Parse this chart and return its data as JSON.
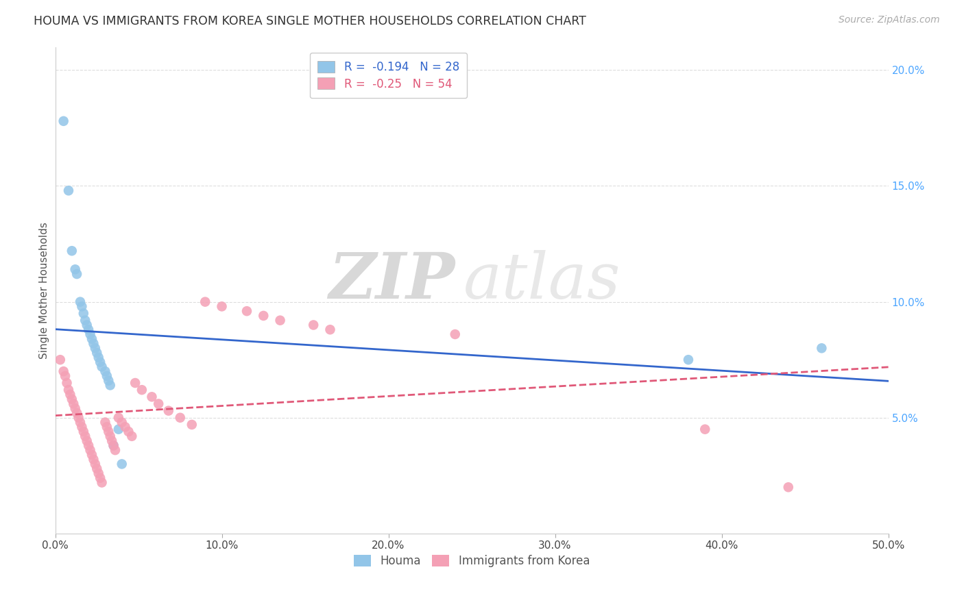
{
  "title": "HOUMA VS IMMIGRANTS FROM KOREA SINGLE MOTHER HOUSEHOLDS CORRELATION CHART",
  "source": "Source: ZipAtlas.com",
  "ylabel": "Single Mother Households",
  "xmin": 0.0,
  "xmax": 0.5,
  "ymin": 0.0,
  "ymax": 0.21,
  "houma_color": "#92C5E8",
  "korea_color": "#F4A0B5",
  "houma_line_color": "#3366CC",
  "korea_line_color": "#E05878",
  "houma_R": -0.194,
  "houma_N": 28,
  "korea_R": -0.25,
  "korea_N": 54,
  "legend_houma": "Houma",
  "legend_korea": "Immigrants from Korea",
  "watermark_zip": "ZIP",
  "watermark_atlas": "atlas",
  "background_color": "#ffffff",
  "grid_color": "#dddddd",
  "houma_x": [
    0.005,
    0.008,
    0.01,
    0.012,
    0.013,
    0.015,
    0.016,
    0.017,
    0.018,
    0.019,
    0.02,
    0.021,
    0.022,
    0.023,
    0.024,
    0.025,
    0.026,
    0.027,
    0.028,
    0.03,
    0.031,
    0.032,
    0.033,
    0.035,
    0.038,
    0.04,
    0.38,
    0.46
  ],
  "houma_y": [
    0.178,
    0.148,
    0.122,
    0.114,
    0.112,
    0.1,
    0.098,
    0.095,
    0.092,
    0.09,
    0.088,
    0.086,
    0.084,
    0.082,
    0.08,
    0.078,
    0.076,
    0.074,
    0.072,
    0.07,
    0.068,
    0.066,
    0.064,
    0.038,
    0.045,
    0.03,
    0.075,
    0.08
  ],
  "korea_x": [
    0.003,
    0.005,
    0.006,
    0.007,
    0.008,
    0.009,
    0.01,
    0.011,
    0.012,
    0.013,
    0.014,
    0.015,
    0.016,
    0.017,
    0.018,
    0.019,
    0.02,
    0.021,
    0.022,
    0.023,
    0.024,
    0.025,
    0.026,
    0.027,
    0.028,
    0.03,
    0.031,
    0.032,
    0.033,
    0.034,
    0.035,
    0.036,
    0.038,
    0.04,
    0.042,
    0.044,
    0.046,
    0.048,
    0.052,
    0.058,
    0.062,
    0.068,
    0.075,
    0.082,
    0.09,
    0.1,
    0.115,
    0.125,
    0.135,
    0.155,
    0.165,
    0.24,
    0.39,
    0.44
  ],
  "korea_y": [
    0.075,
    0.07,
    0.068,
    0.065,
    0.062,
    0.06,
    0.058,
    0.056,
    0.054,
    0.052,
    0.05,
    0.048,
    0.046,
    0.044,
    0.042,
    0.04,
    0.038,
    0.036,
    0.034,
    0.032,
    0.03,
    0.028,
    0.026,
    0.024,
    0.022,
    0.048,
    0.046,
    0.044,
    0.042,
    0.04,
    0.038,
    0.036,
    0.05,
    0.048,
    0.046,
    0.044,
    0.042,
    0.065,
    0.062,
    0.059,
    0.056,
    0.053,
    0.05,
    0.047,
    0.1,
    0.098,
    0.096,
    0.094,
    0.092,
    0.09,
    0.088,
    0.086,
    0.045,
    0.02
  ]
}
